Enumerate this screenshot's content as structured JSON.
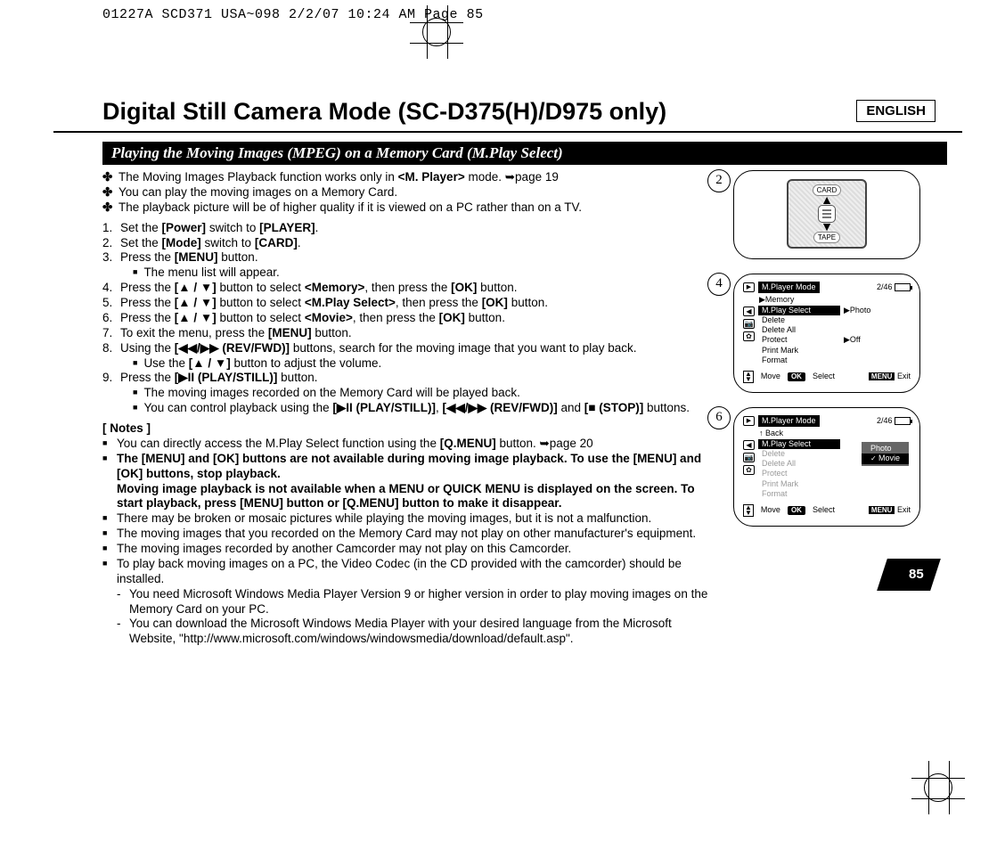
{
  "print_header": "01227A SCD371 USA~098  2/2/07 10:24 AM  Page 85",
  "language": "ENGLISH",
  "title": "Digital Still Camera Mode (SC-D375(H)/D975 only)",
  "subtitle": "Playing the Moving Images (MPEG) on a Memory Card (M.Play Select)",
  "intro": {
    "a": "The Moving Images Playback function works only in ",
    "a_b": "<M. Player>",
    "a2": " mode. ➥page 19",
    "b": "You can play the moving images on a Memory Card.",
    "c": "The playback picture will be of higher quality if it is viewed on a PC rather than on a TV."
  },
  "steps": {
    "s1a": "Set the ",
    "s1b": "[Power]",
    "s1c": " switch to ",
    "s1d": "[PLAYER]",
    "s1e": ".",
    "s2a": "Set the ",
    "s2b": "[Mode]",
    "s2c": " switch to ",
    "s2d": "[CARD]",
    "s2e": ".",
    "s3a": "Press the ",
    "s3b": "[MENU]",
    "s3c": " button.",
    "s3sub": "The menu list will appear.",
    "s4a": "Press the ",
    "s4b": "[▲ / ▼]",
    "s4c": " button to select ",
    "s4d": "<Memory>",
    "s4e": ", then press the ",
    "s4f": "[OK]",
    "s4g": " button.",
    "s5a": "Press the ",
    "s5b": "[▲ / ▼]",
    "s5c": " button to select ",
    "s5d": "<M.Play Select>",
    "s5e": ", then press the ",
    "s5f": "[OK]",
    "s5g": " button.",
    "s6a": "Press the ",
    "s6b": "[▲ / ▼]",
    "s6c": " button to select ",
    "s6d": "<Movie>",
    "s6e": ", then press the ",
    "s6f": "[OK]",
    "s6g": " button.",
    "s7a": "To exit the menu, press the ",
    "s7b": "[MENU]",
    "s7c": " button.",
    "s8a": "Using the ",
    "s8b": "[◀◀/▶▶ (REV/FWD)]",
    "s8c": " buttons, search for the moving image that you want to play back.",
    "s8sub_a": "Use the ",
    "s8sub_b": "[▲ / ▼]",
    "s8sub_c": " button to adjust the volume.",
    "s9a": "Press the ",
    "s9b": "[▶II (PLAY/STILL)]",
    "s9c": " button.",
    "s9sub1": "The moving images recorded on the Memory Card will be played back.",
    "s9sub2a": "You can control playback using the ",
    "s9sub2b": "[▶II (PLAY/STILL)]",
    "s9sub2c": ", ",
    "s9sub2d": "[◀◀/▶▶ (REV/FWD)]",
    "s9sub2e": " and ",
    "s9sub2f": "[■ (STOP)]",
    "s9sub2g": " buttons."
  },
  "notes_h": "[ Notes ]",
  "notes": {
    "n1a": "You can directly access the M.Play Select function using the ",
    "n1b": "[Q.MENU]",
    "n1c": " button. ➥page 20",
    "n2": "The [MENU] and [OK] buttons are not available during moving image playback. To use the [MENU] and [OK] buttons, stop playback.\nMoving image playback is not available when a MENU or QUICK MENU is displayed on the screen. To start playback, press [MENU] button or [Q.MENU] button to make it disappear.",
    "n3": "There may be broken or mosaic pictures while playing the moving images, but it is not a malfunction.",
    "n4": "The moving images that you recorded on the Memory Card may not play on other manufacturer's equipment.",
    "n5": "The moving images recorded by another Camcorder may not play on this Camcorder.",
    "n6": "To play back moving images on a PC, the Video Codec (in the CD provided with the camcorder) should be installed.",
    "n6s1": "You need Microsoft Windows Media Player Version 9 or higher version in order to play moving images on the Memory Card on your PC.",
    "n6s2": "You can download the Microsoft Windows Media Player with your desired language from the Microsoft Website, \"http://www.microsoft.com/windows/windowsmedia/download/default.asp\"."
  },
  "fig2": {
    "num": "2",
    "top": "CARD",
    "bottom": "TAPE"
  },
  "fig4": {
    "num": "4",
    "title": "M.Player Mode",
    "counter": "2/46",
    "crumb": "▶Memory",
    "items": [
      {
        "label": "M.Play Select",
        "val": "▶Photo",
        "sel": true
      },
      {
        "label": "Delete"
      },
      {
        "label": "Delete All"
      },
      {
        "label": "Protect",
        "val": "▶Off"
      },
      {
        "label": "Print Mark"
      },
      {
        "label": "Format"
      }
    ],
    "foot": {
      "move": "Move",
      "select": "Select",
      "exit": "Exit"
    }
  },
  "fig6": {
    "num": "6",
    "title": "M.Player Mode",
    "counter": "2/46",
    "crumb": "↑ Back",
    "items": [
      {
        "label": "M.Play Select",
        "sel": true
      },
      {
        "label": "Delete",
        "dim": true
      },
      {
        "label": "Delete All",
        "dim": true
      },
      {
        "label": "Protect",
        "dim": true
      },
      {
        "label": "Print Mark",
        "dim": true
      },
      {
        "label": "Format",
        "dim": true
      }
    ],
    "submenu": {
      "a": "Photo",
      "b": "Movie"
    },
    "foot": {
      "move": "Move",
      "select": "Select",
      "exit": "Exit"
    }
  },
  "page_num": "85"
}
